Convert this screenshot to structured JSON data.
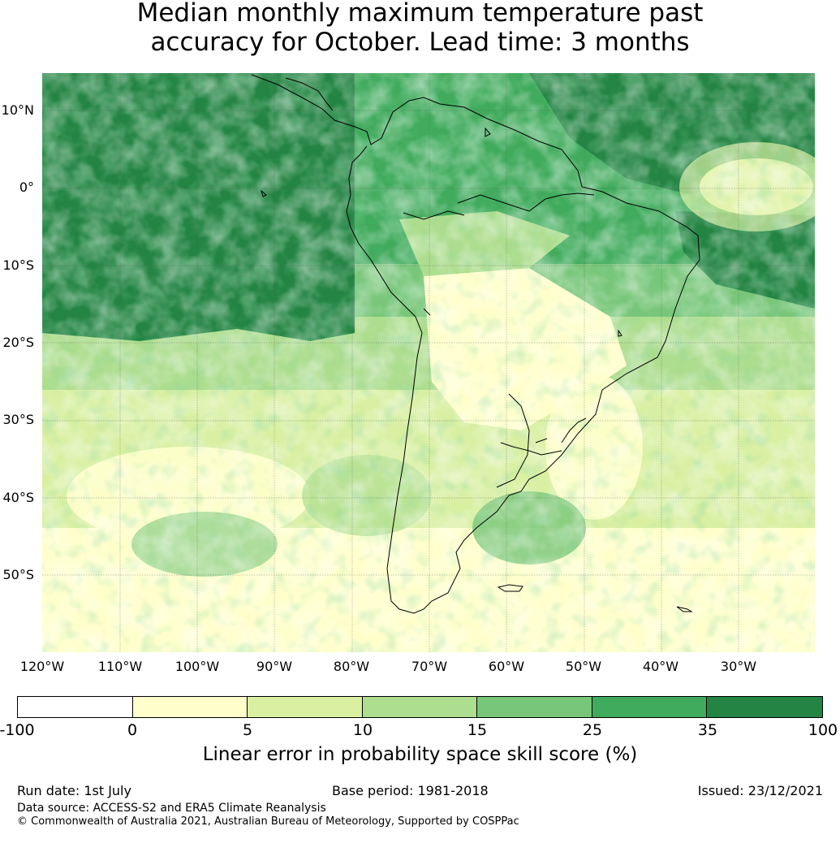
{
  "title": {
    "line1": "Median monthly maximum temperature past",
    "line2": "accuracy for October. Lead time: 3 months"
  },
  "map": {
    "region": "South America",
    "lat_labels": [
      "10°N",
      "0°",
      "10°S",
      "20°S",
      "30°S",
      "40°S",
      "50°S"
    ],
    "lon_labels": [
      "120°W",
      "110°W",
      "100°W",
      "90°W",
      "80°W",
      "70°W",
      "60°W",
      "50°W",
      "40°W",
      "30°W"
    ]
  },
  "colorbar": {
    "ticks": [
      "-100",
      "0",
      "5",
      "10",
      "15",
      "25",
      "35",
      "100"
    ],
    "colors": [
      "#ffffff",
      "#ffffcc",
      "#d9f0a3",
      "#addd8e",
      "#78c679",
      "#41ab5d",
      "#238443"
    ],
    "label": "Linear error in probability space skill score (%)"
  },
  "footer": {
    "run_date": "Run date: 1st July",
    "base_period": "Base period: 1981-2018",
    "issued": "Issued: 23/12/2021",
    "data_source": "Data source: ACCESS-S2 and ERA5 Climate Reanalysis",
    "copyright": "© Commonwealth of Australia 2021, Australian Bureau of Meteorology, Supported by COSPPac"
  }
}
